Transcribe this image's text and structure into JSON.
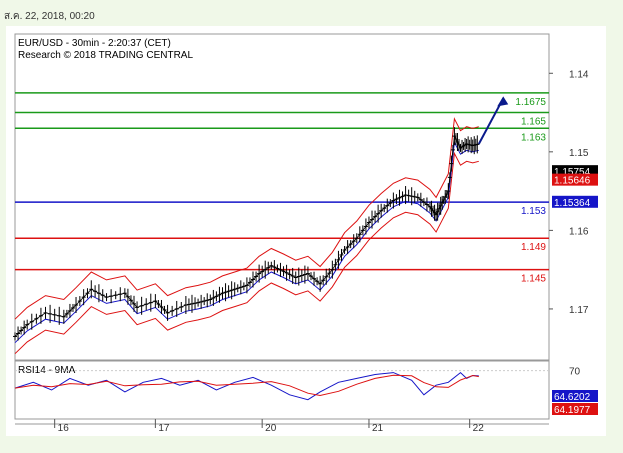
{
  "header": {
    "timestamp": "ส.ค. 22, 2018, 00:20"
  },
  "chart_data": {
    "type": "candlestick",
    "title": "EUR/USD - 30min - 2:20:37 (CET)",
    "subtitle": "Research © 2018 TRADING CENTRAL",
    "x_tick_labels": [
      "16",
      "17",
      "20",
      "21",
      "22"
    ],
    "y_tick_labels": [
      "1.17",
      "1.16",
      "1.15",
      "1.14"
    ],
    "ylim": [
      1.1335,
      1.175
    ],
    "y_ticks": [
      1.14,
      1.15,
      1.16,
      1.17
    ],
    "price_path": [
      [
        0,
        1.1365
      ],
      [
        4,
        1.138
      ],
      [
        10,
        1.1395
      ],
      [
        16,
        1.139
      ],
      [
        20,
        1.1405
      ],
      [
        25,
        1.1425
      ],
      [
        30,
        1.1415
      ],
      [
        36,
        1.142
      ],
      [
        40,
        1.1402
      ],
      [
        46,
        1.141
      ],
      [
        50,
        1.1395
      ],
      [
        56,
        1.1405
      ],
      [
        60,
        1.1408
      ],
      [
        64,
        1.1412
      ],
      [
        68,
        1.142
      ],
      [
        72,
        1.1425
      ],
      [
        76,
        1.143
      ],
      [
        80,
        1.1445
      ],
      [
        84,
        1.1455
      ],
      [
        88,
        1.1448
      ],
      [
        92,
        1.144
      ],
      [
        96,
        1.1445
      ],
      [
        100,
        1.1432
      ],
      [
        104,
        1.145
      ],
      [
        108,
        1.1475
      ],
      [
        112,
        1.149
      ],
      [
        116,
        1.151
      ],
      [
        120,
        1.1525
      ],
      [
        124,
        1.1538
      ],
      [
        128,
        1.1545
      ],
      [
        132,
        1.1542
      ],
      [
        136,
        1.153
      ],
      [
        138,
        1.152
      ],
      [
        140,
        1.1535
      ],
      [
        142,
        1.155
      ],
      [
        144,
        1.162
      ],
      [
        146,
        1.1605
      ],
      [
        148,
        1.161
      ],
      [
        150,
        1.1608
      ],
      [
        152,
        1.161
      ]
    ],
    "x_day_ticks": [
      {
        "label": "16",
        "x": 13
      },
      {
        "label": "17",
        "x": 46
      },
      {
        "label": "20",
        "x": 81
      },
      {
        "label": "21",
        "x": 116
      },
      {
        "label": "22",
        "x": 149
      }
    ],
    "x_max": 175,
    "levels": [
      {
        "label": "1.1675",
        "value": 1.1675,
        "color": "#1a9a1a"
      },
      {
        "label": "1.165",
        "value": 1.165,
        "color": "#1a9a1a"
      },
      {
        "label": "1.163",
        "value": 1.163,
        "color": "#1a9a1a"
      },
      {
        "label": "1.153",
        "value": 1.1536,
        "color": "#1515c8"
      },
      {
        "label": "1.149",
        "value": 1.149,
        "color": "#dd1111"
      },
      {
        "label": "1.145",
        "value": 1.145,
        "color": "#dd1111"
      }
    ],
    "price_tags": [
      {
        "label": "1.15754",
        "value": 1.15754,
        "bg": "#000000",
        "fg": "#ffffff"
      },
      {
        "label": "1.15646",
        "value": 1.15646,
        "bg": "#dd1111",
        "fg": "#ffffff"
      },
      {
        "label": "1.15364",
        "value": 1.15364,
        "bg": "#1515c8",
        "fg": "#ffffff"
      }
    ],
    "projection_arrow": {
      "from": [
        152,
        1.161
      ],
      "to": [
        160,
        1.1668
      ],
      "color": "#0a1a8c"
    },
    "rsi": {
      "title": "RSI14 - 9MA",
      "ylim": [
        20,
        80
      ],
      "tick_label": "70",
      "tick_value": 70,
      "value_tags": [
        {
          "label": "64.6202",
          "value": 64.6202,
          "bg": "#1515c8",
          "fg": "#ffffff"
        },
        {
          "label": "64.1977",
          "value": 64.1977,
          "bg": "#dd1111",
          "fg": "#ffffff"
        }
      ],
      "rsi_path": [
        [
          0,
          52
        ],
        [
          6,
          58
        ],
        [
          12,
          50
        ],
        [
          18,
          62
        ],
        [
          24,
          55
        ],
        [
          30,
          60
        ],
        [
          36,
          48
        ],
        [
          42,
          58
        ],
        [
          48,
          62
        ],
        [
          54,
          55
        ],
        [
          60,
          60
        ],
        [
          66,
          50
        ],
        [
          72,
          58
        ],
        [
          78,
          63
        ],
        [
          84,
          55
        ],
        [
          90,
          45
        ],
        [
          96,
          40
        ],
        [
          100,
          48
        ],
        [
          106,
          58
        ],
        [
          112,
          62
        ],
        [
          118,
          66
        ],
        [
          124,
          68
        ],
        [
          130,
          60
        ],
        [
          134,
          45
        ],
        [
          138,
          55
        ],
        [
          142,
          58
        ],
        [
          146,
          68
        ],
        [
          148,
          62
        ],
        [
          150,
          65
        ],
        [
          152,
          64.6
        ]
      ]
    },
    "colors": {
      "price": "#000000",
      "bollinger": "#dd1111",
      "ma": "#1515c8",
      "support": "#dd1111",
      "resistance": "#1a9a1a"
    }
  }
}
